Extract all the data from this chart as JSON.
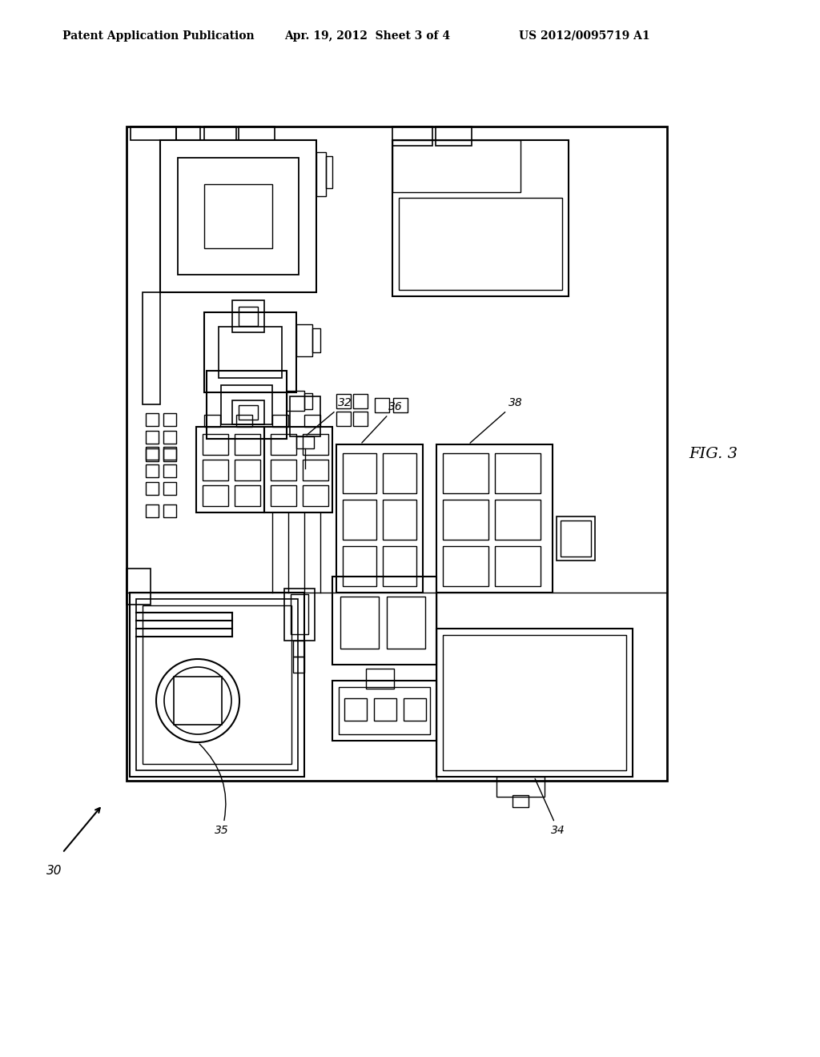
{
  "title_left": "Patent Application Publication",
  "title_center": "Apr. 19, 2012  Sheet 3 of 4",
  "title_right": "US 2012/0095719 A1",
  "fig_label": "FIG. 3",
  "bg_color": "#ffffff",
  "line_color": "#000000"
}
